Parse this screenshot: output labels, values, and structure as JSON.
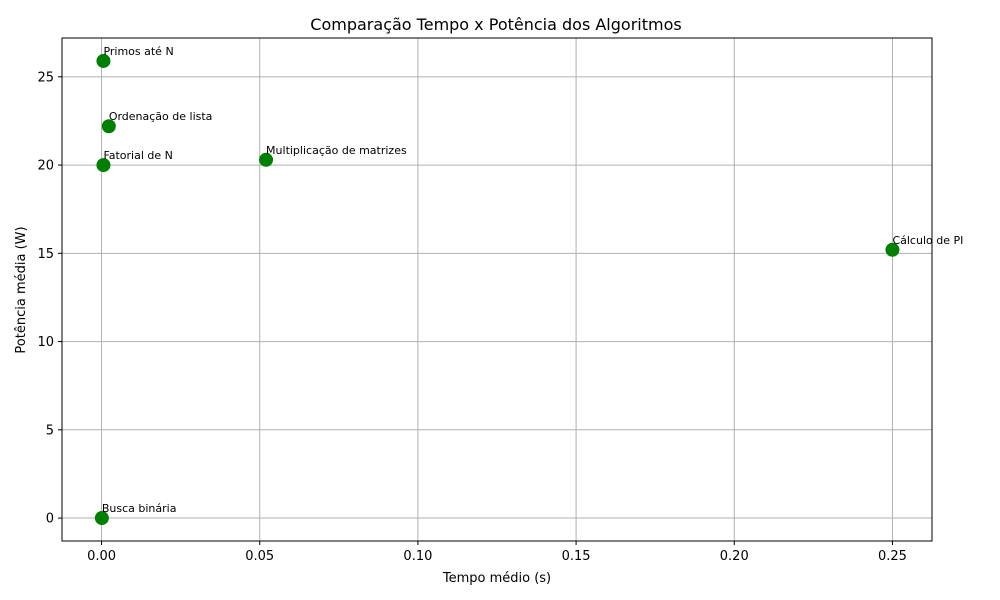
{
  "chart_data": {
    "type": "scatter",
    "title": "Comparação Tempo x Potência dos Algoritmos",
    "xlabel": "Tempo médio (s)",
    "ylabel": "Potência média (W)",
    "xlim": [
      -0.0125,
      0.2625
    ],
    "ylim": [
      -1.3,
      27.2
    ],
    "xticks": [
      0.0,
      0.05,
      0.1,
      0.15,
      0.2,
      0.25
    ],
    "xtick_labels": [
      "0.00",
      "0.05",
      "0.10",
      "0.15",
      "0.20",
      "0.25"
    ],
    "yticks": [
      0,
      5,
      10,
      15,
      20,
      25
    ],
    "ytick_labels": [
      "0",
      "5",
      "10",
      "15",
      "20",
      "25"
    ],
    "grid": true,
    "marker_color": "#008000",
    "points": [
      {
        "label": "Primos até N",
        "x": 0.0006,
        "y": 25.9
      },
      {
        "label": "Ordenação de lista",
        "x": 0.0023,
        "y": 22.2
      },
      {
        "label": "Fatorial de N",
        "x": 0.0006,
        "y": 20.0
      },
      {
        "label": "Multiplicação de matrizes",
        "x": 0.052,
        "y": 20.3
      },
      {
        "label": "Cálculo de PI",
        "x": 0.25,
        "y": 15.2
      },
      {
        "label": "Busca binária",
        "x": 0.0001,
        "y": 0.0
      }
    ]
  }
}
